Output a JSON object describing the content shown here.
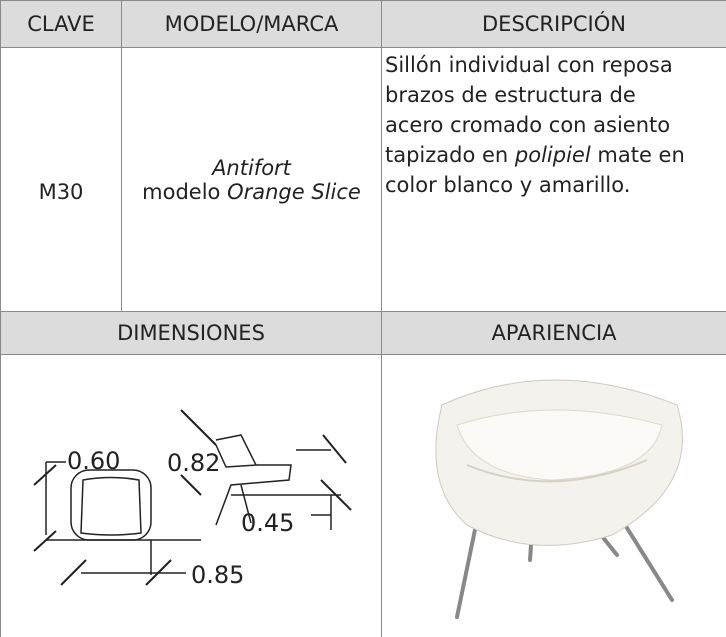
{
  "table": {
    "headers": [
      "CLAVE",
      "MODELO/MARCA",
      "DESCRIPCIÓN"
    ],
    "row": {
      "clave": "M30",
      "brand": "Antifort",
      "model": [
        {
          "text": "modelo ",
          "italic": false
        },
        {
          "text": "Orange Slice",
          "italic": true
        }
      ],
      "description": [
        [
          {
            "text": "Sillón individual con reposa",
            "italic": false
          }
        ],
        [
          {
            "text": "brazos de estructura de",
            "italic": false
          }
        ],
        [
          {
            "text": "acero cromado con asiento",
            "italic": false
          }
        ],
        [
          {
            "text": "tapizado en ",
            "italic": false
          },
          {
            "text": "polipiel",
            "italic": true
          },
          {
            "text": " mate  en",
            "italic": false
          }
        ],
        [
          {
            "text": "color blanco y amarillo.",
            "italic": false
          }
        ]
      ]
    },
    "section_headers": [
      "DIMENSIONES",
      "APARIENCIA"
    ],
    "dimensions": {
      "width": "0.60",
      "height": "0.82",
      "seat": "0.45",
      "depth": "0.85"
    }
  }
}
